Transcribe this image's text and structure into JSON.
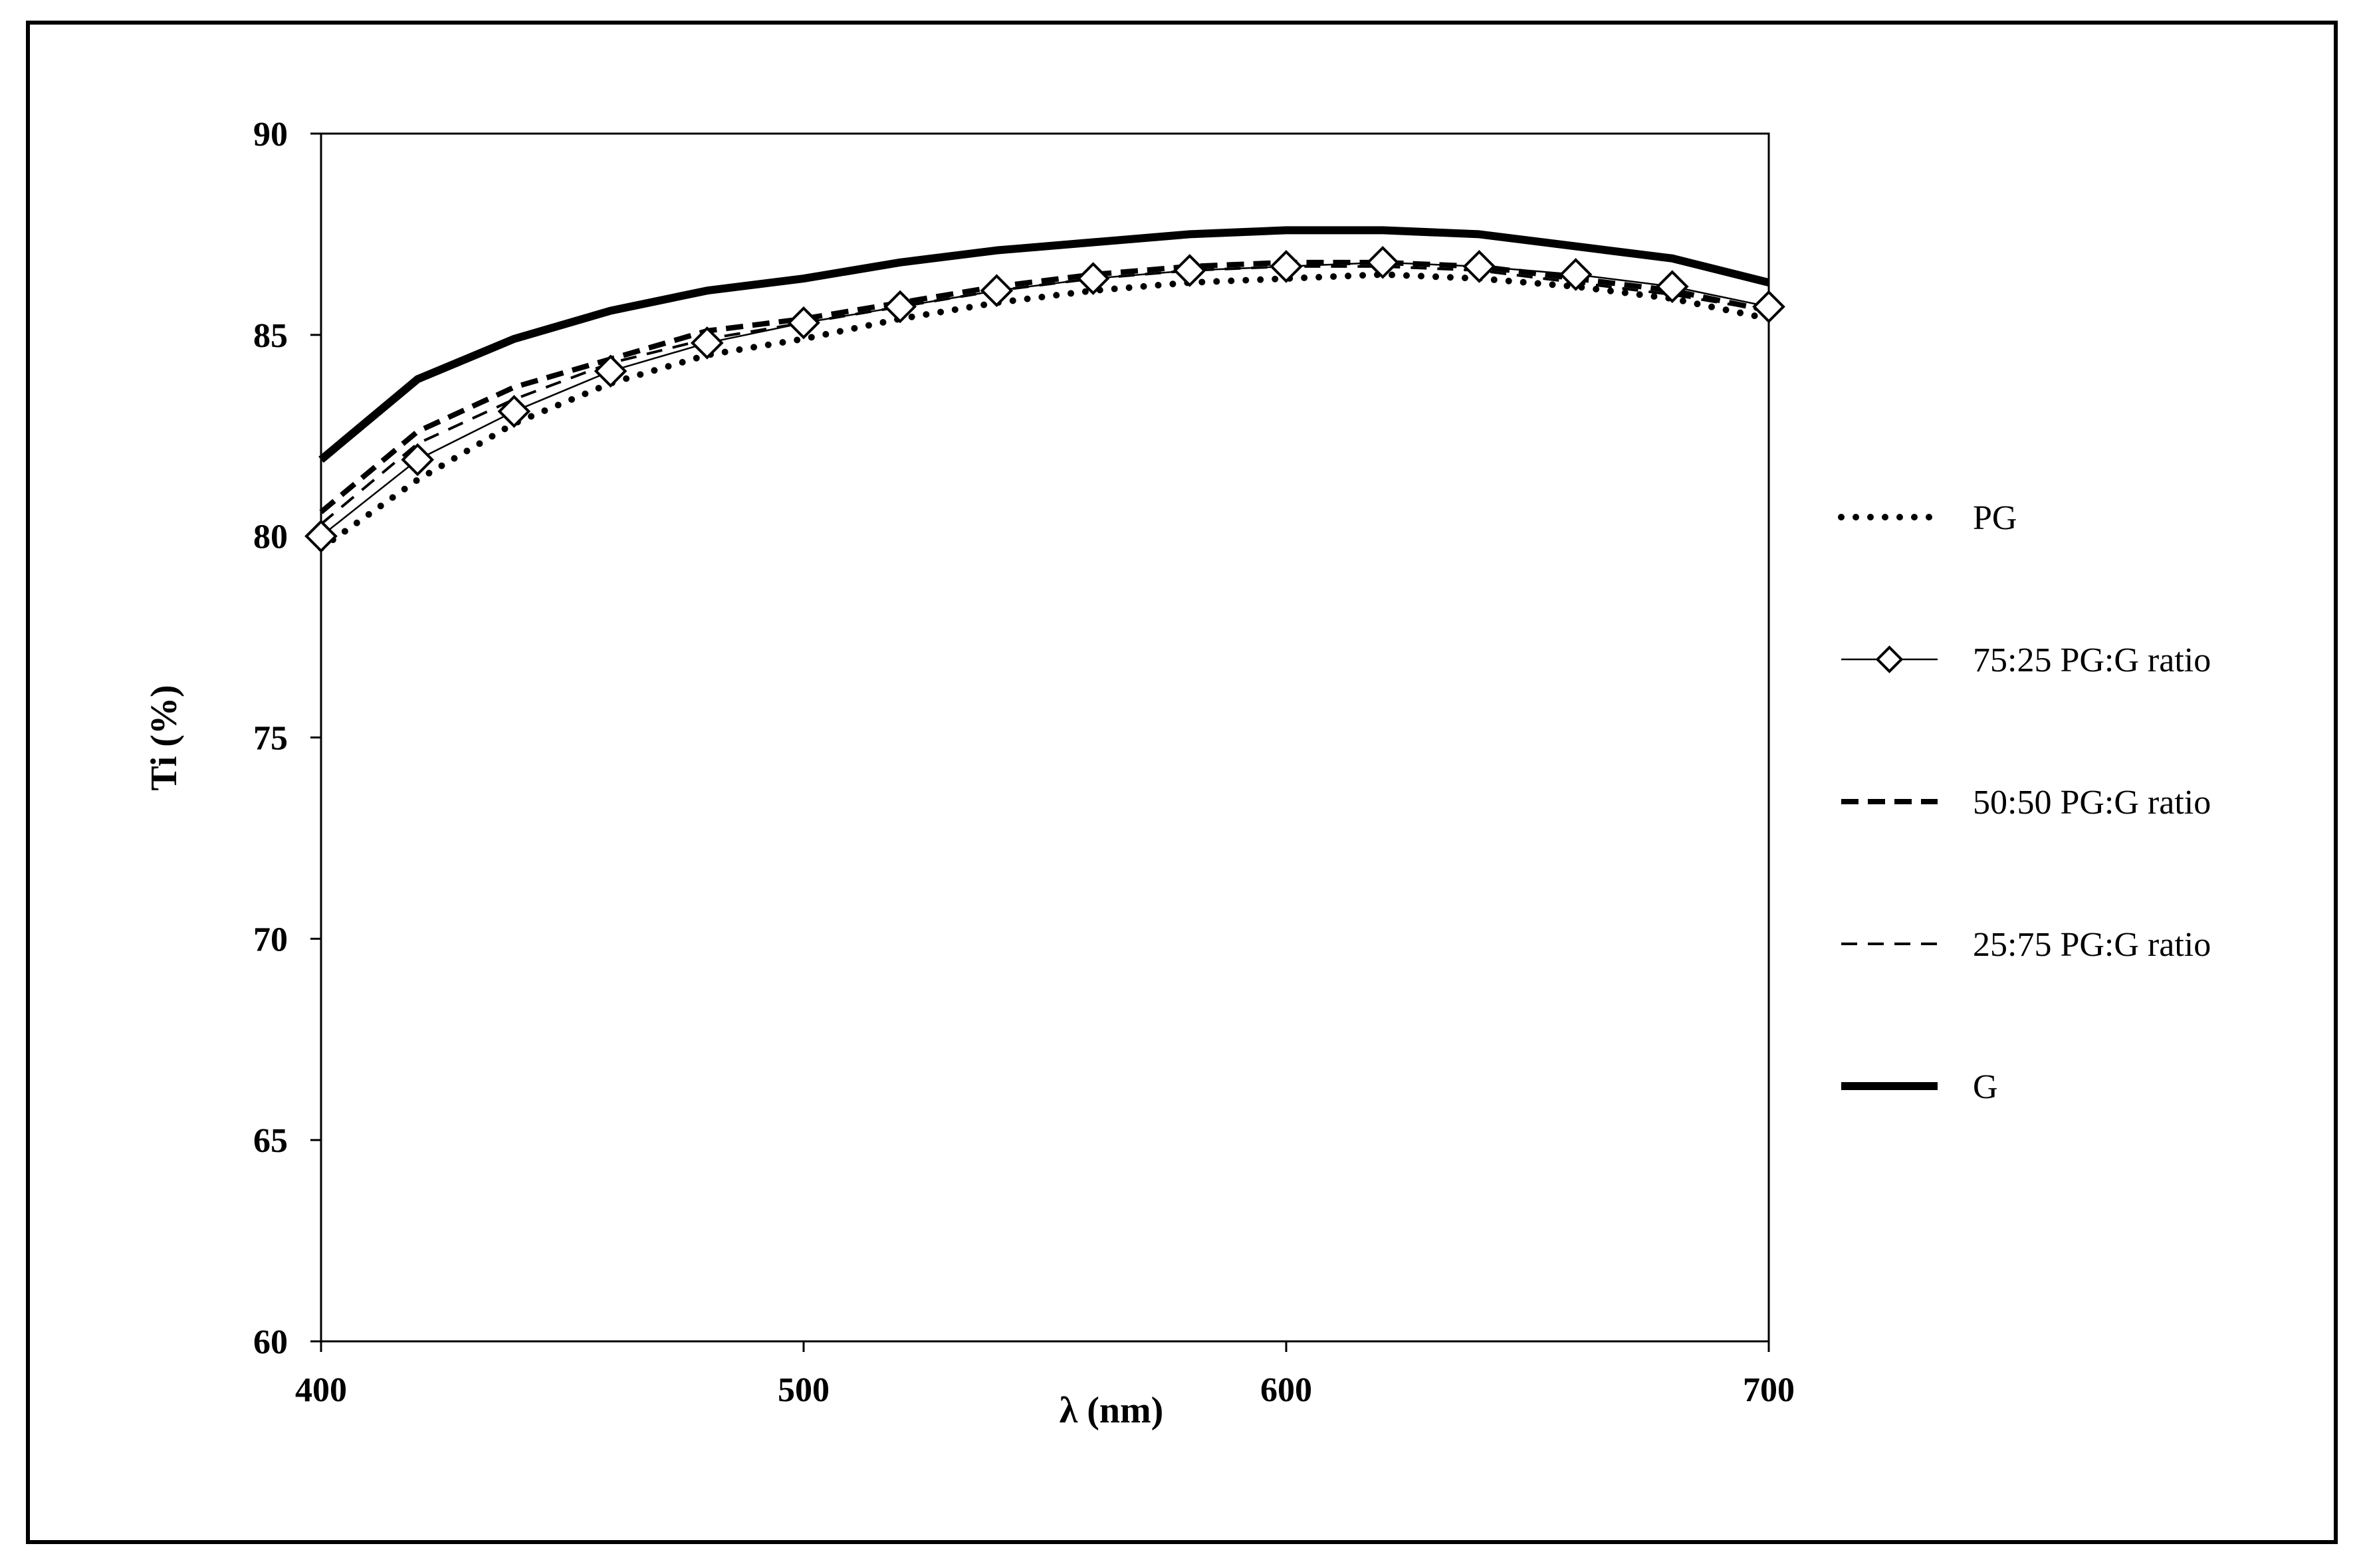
{
  "chart_data": {
    "type": "line",
    "xlabel": "λ (nm)",
    "ylabel": "Ti (%)",
    "xlim": [
      400,
      700
    ],
    "ylim": [
      60,
      90
    ],
    "xticks": [
      400,
      500,
      600,
      700
    ],
    "yticks": [
      60,
      65,
      70,
      75,
      80,
      85,
      90
    ],
    "x": [
      400,
      420,
      440,
      460,
      480,
      500,
      520,
      540,
      560,
      580,
      600,
      620,
      640,
      660,
      680,
      700
    ],
    "legend_position": "right",
    "grid": false,
    "series": [
      {
        "name": "PG",
        "style": "dotted",
        "values": [
          79.7,
          81.4,
          82.8,
          83.8,
          84.5,
          84.9,
          85.4,
          85.8,
          86.1,
          86.3,
          86.4,
          86.5,
          86.4,
          86.2,
          85.9,
          85.4
        ]
      },
      {
        "name": "75:25 PG:G ratio",
        "style": "thin-diamond",
        "values": [
          80.0,
          81.9,
          83.1,
          84.1,
          84.8,
          85.3,
          85.7,
          86.1,
          86.4,
          86.6,
          86.7,
          86.8,
          86.7,
          86.5,
          86.2,
          85.7
        ]
      },
      {
        "name": "50:50 PG:G ratio",
        "style": "thick-dash",
        "values": [
          80.6,
          82.6,
          83.7,
          84.4,
          85.1,
          85.4,
          85.8,
          86.2,
          86.5,
          86.7,
          86.8,
          86.8,
          86.7,
          86.4,
          86.1,
          85.6
        ]
      },
      {
        "name": "25:75 PG:G ratio",
        "style": "thin-dash",
        "values": [
          80.3,
          82.3,
          83.4,
          84.3,
          84.9,
          85.3,
          85.7,
          86.1,
          86.4,
          86.6,
          86.7,
          86.7,
          86.6,
          86.3,
          86.0,
          85.6
        ]
      },
      {
        "name": "G",
        "style": "thick-solid",
        "values": [
          81.9,
          83.9,
          84.9,
          85.6,
          86.1,
          86.4,
          86.8,
          87.1,
          87.3,
          87.5,
          87.6,
          87.6,
          87.5,
          87.2,
          86.9,
          86.3
        ]
      }
    ]
  }
}
